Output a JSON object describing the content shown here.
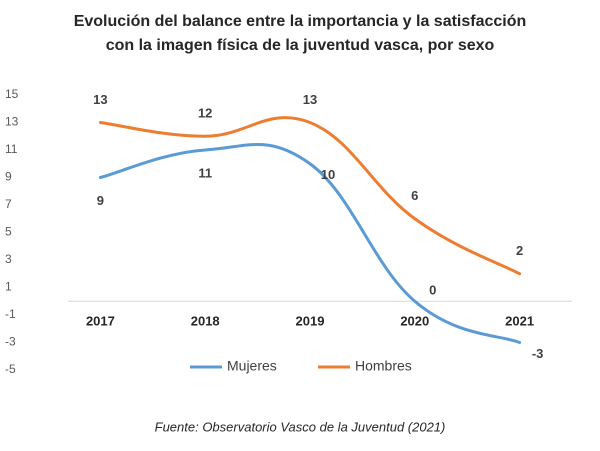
{
  "chart_data": {
    "type": "line",
    "title": [
      "Evolución del balance entre la importancia y la satisfacción",
      "con la imagen física de la juventud vasca, por sexo"
    ],
    "categories": [
      "2017",
      "2018",
      "2019",
      "2020",
      "2021"
    ],
    "series": [
      {
        "name": "Mujeres",
        "color": "#5b9bd5",
        "values": [
          9,
          11,
          10,
          0,
          -3
        ]
      },
      {
        "name": "Hombres",
        "color": "#ed7d31",
        "values": [
          13,
          12,
          13,
          6,
          2
        ]
      }
    ],
    "ylim": [
      -5,
      15
    ],
    "yticks": [
      -5,
      -3,
      -1,
      1,
      3,
      5,
      7,
      9,
      11,
      13,
      15
    ],
    "source": "Fuente: Observatorio Vasco de la Juventud (2021)"
  }
}
